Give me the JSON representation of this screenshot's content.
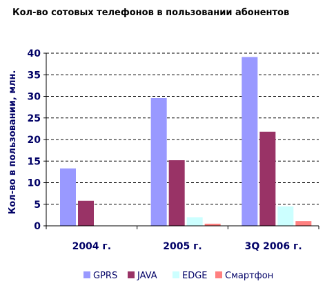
{
  "chart_data": {
    "type": "bar",
    "title": "Кол-во сотовых телефонов в пользовании абонентов",
    "ylabel": "Кол-во в пользовании, млн.",
    "xlabel": "",
    "ylim": [
      0,
      40
    ],
    "yticks": [
      0,
      5,
      10,
      15,
      20,
      25,
      30,
      35,
      40
    ],
    "grid": "horizontal dashed",
    "legend_position": "bottom",
    "categories": [
      "2004 г.",
      "2005 г.",
      "3Q 2006 г."
    ],
    "series": [
      {
        "name": "GPRS",
        "color": "#9999ff",
        "values": [
          13.3,
          29.6,
          39.1
        ]
      },
      {
        "name": "JAVA",
        "color": "#993366",
        "values": [
          5.8,
          15.2,
          21.8
        ]
      },
      {
        "name": "EDGE",
        "color": "#ccffff",
        "values": [
          0,
          2.0,
          4.5
        ]
      },
      {
        "name": "Смартфон",
        "color": "#ff8080",
        "values": [
          0,
          0.5,
          1.1
        ]
      }
    ],
    "colors": {
      "text": "#000066",
      "axis": "#000000",
      "grid": "#000000"
    }
  }
}
